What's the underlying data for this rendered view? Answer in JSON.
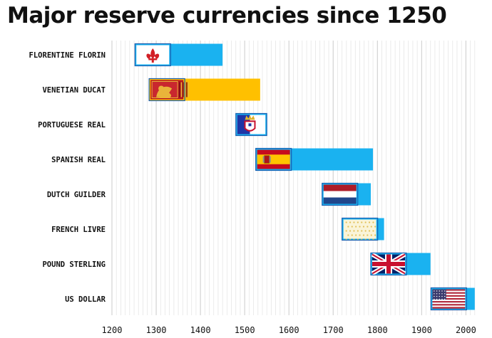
{
  "chart_data": {
    "type": "bar",
    "title": "Major reserve currencies since 1250",
    "xlabel": "",
    "ylabel": "",
    "xlim": [
      1200,
      2025
    ],
    "xticks": [
      1200,
      1300,
      1400,
      1500,
      1600,
      1700,
      1800,
      1900,
      2000
    ],
    "minor_grid_step": 10,
    "grid": true,
    "series": [
      {
        "label": "FLORENTINE FLORIN",
        "start": 1252,
        "end": 1450,
        "color": "#1ab2f0",
        "flag": "florence-fleur-de-lis-flag"
      },
      {
        "label": "VENETIAN DUCAT",
        "start": 1284,
        "end": 1535,
        "color": "#ffc000",
        "flag": "venice-lion-flag"
      },
      {
        "label": "PORTUGUESE REAL",
        "start": 1480,
        "end": 1550,
        "color": "#1ab2f0",
        "flag": "portugal-royal-flag"
      },
      {
        "label": "SPANISH REAL",
        "start": 1525,
        "end": 1790,
        "color": "#1ab2f0",
        "flag": "spain-flag"
      },
      {
        "label": "DUTCH GUILDER",
        "start": 1675,
        "end": 1785,
        "color": "#1ab2f0",
        "flag": "netherlands-flag"
      },
      {
        "label": "FRENCH LIVRE",
        "start": 1720,
        "end": 1815,
        "color": "#1ab2f0",
        "flag": "french-royal-flag"
      },
      {
        "label": "POUND STERLING",
        "start": 1785,
        "end": 1920,
        "color": "#1ab2f0",
        "flag": "union-jack-flag"
      },
      {
        "label": "US DOLLAR",
        "start": 1921,
        "end": 2020,
        "color": "#1ab2f0",
        "flag": "us-flag"
      }
    ]
  }
}
